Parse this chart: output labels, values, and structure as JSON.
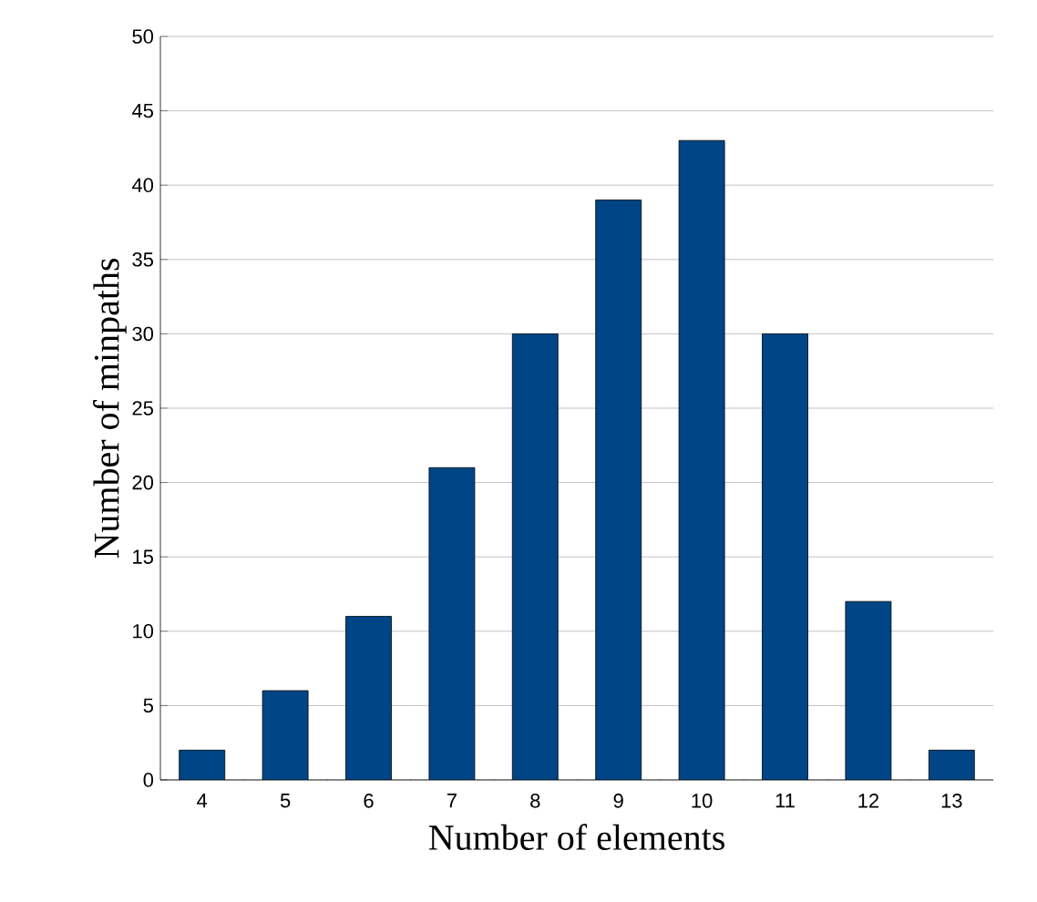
{
  "chart_data": {
    "type": "bar",
    "xlabel": "Number of elements",
    "ylabel": "Number of minpaths",
    "categories": [
      "4",
      "5",
      "6",
      "7",
      "8",
      "9",
      "10",
      "11",
      "12",
      "13"
    ],
    "values": [
      2,
      6,
      11,
      21,
      30,
      39,
      43,
      30,
      12,
      2
    ],
    "color": "#004586",
    "ylim": [
      0,
      50
    ],
    "yticks": [
      0,
      5,
      10,
      15,
      20,
      25,
      30,
      35,
      40,
      45,
      50
    ],
    "grid": "y"
  }
}
